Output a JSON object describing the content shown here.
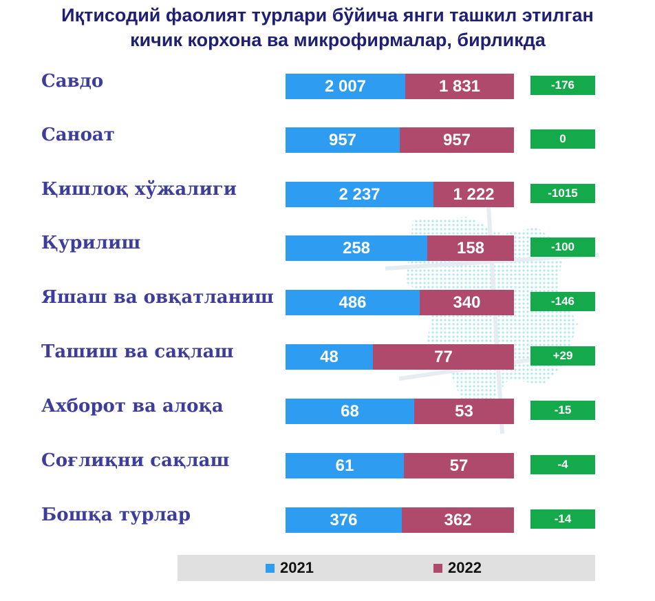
{
  "title_line1": "Иқтисодий фаолият турлари бўйича янги ташкил этилган",
  "title_line2": "кичик корхона ва микрофирмалар, бирликда",
  "colors": {
    "y2021": "#2e9cf0",
    "y2022": "#b04a6d",
    "diff": "#14a94a",
    "label": "#3d3d9b",
    "title": "#1f1f73"
  },
  "chart_data": {
    "type": "bar",
    "orientation": "horizontal-stacked",
    "title": "Иқтисодий фаолият турлари бўйича янги ташкил этилган кичик корхона ва микрофирмалар, бирликда",
    "categories": [
      "Савдо",
      "Саноат",
      "Қишлоқ хўжалиги",
      "Қурилиш",
      "Яшаш ва овқатланиш",
      "Ташиш ва сақлаш",
      "Ахборот ва алоқа",
      "Соғлиқни сақлаш",
      "Бошқа турлар"
    ],
    "series": [
      {
        "name": "2021",
        "values": [
          2007,
          957,
          2237,
          258,
          486,
          48,
          68,
          61,
          376
        ],
        "labels": [
          "2 007",
          "957",
          "2 237",
          "258",
          "486",
          "48",
          "68",
          "61",
          "376"
        ]
      },
      {
        "name": "2022",
        "values": [
          1831,
          957,
          1222,
          158,
          340,
          77,
          53,
          57,
          362
        ],
        "labels": [
          "1 831",
          "957",
          "1 222",
          "158",
          "340",
          "77",
          "53",
          "57",
          "362"
        ]
      }
    ],
    "differences": [
      "-176",
      "0",
      "-1015",
      "-100",
      "-146",
      "+29",
      "-15",
      "-4",
      "-14"
    ],
    "legend": {
      "placement": "bottom",
      "entries": [
        "2021",
        "2022"
      ]
    }
  }
}
